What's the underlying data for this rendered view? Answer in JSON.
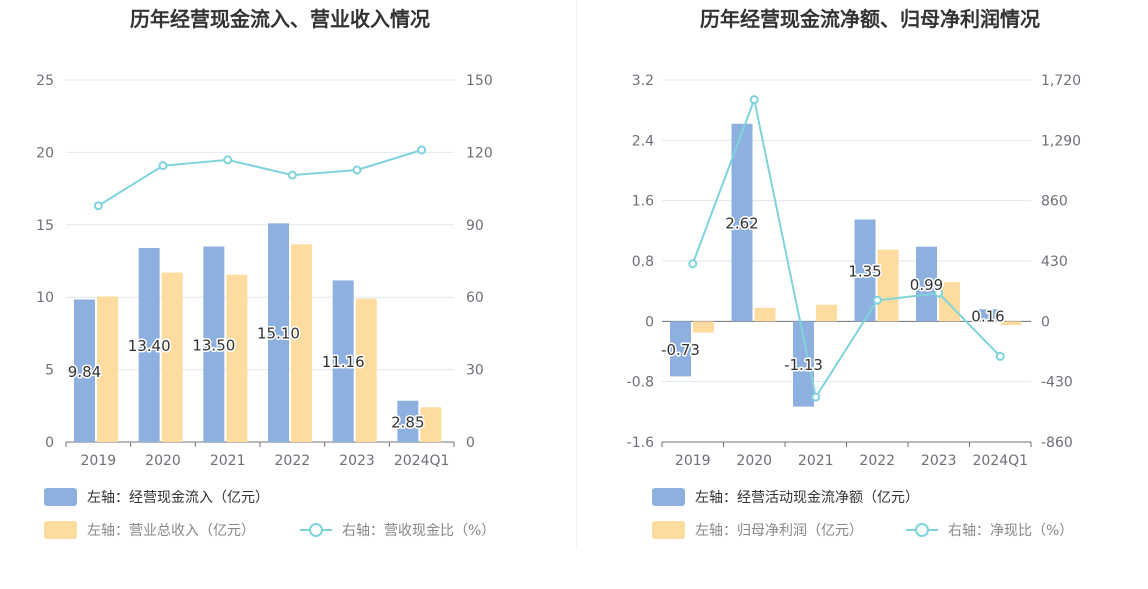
{
  "colors": {
    "bar_primary": "#8eb0de",
    "bar_secondary": "#fedc9f",
    "line": "#7fd3dc",
    "grid": "#e3e7f0",
    "axis": "#6e7079",
    "legend_active": "#333333",
    "legend_muted": "#888888"
  },
  "chart_data": [
    {
      "type": "bar",
      "title": "历年经营现金流入、营业收入情况",
      "categories": [
        "2019",
        "2020",
        "2021",
        "2022",
        "2023",
        "2024Q1"
      ],
      "left_axis": {
        "ticks": [
          "0",
          "5",
          "10",
          "15",
          "20",
          "25"
        ],
        "ylim": [
          0,
          25
        ]
      },
      "right_axis": {
        "ticks": [
          "0",
          "30",
          "60",
          "90",
          "120",
          "150"
        ],
        "ylim": [
          0,
          150
        ]
      },
      "series": [
        {
          "name": "左轴：经营现金流入（亿元）",
          "axis": "left",
          "kind": "bar",
          "values": [
            9.84,
            13.4,
            13.5,
            15.1,
            11.16,
            2.85
          ],
          "labels": [
            "9.84",
            "13.40",
            "13.50",
            "15.10",
            "11.16",
            "2.85"
          ]
        },
        {
          "name": "左轴：营业总收入（亿元）",
          "axis": "left",
          "kind": "bar",
          "values": [
            10.05,
            11.7,
            11.55,
            13.65,
            9.9,
            2.4
          ]
        },
        {
          "name": "右轴：营收现金比（%）",
          "axis": "right",
          "kind": "line",
          "values": [
            97.9,
            114.5,
            116.9,
            110.6,
            112.7,
            121.0
          ]
        }
      ]
    },
    {
      "type": "bar",
      "title": "历年经营现金流净额、归母净利润情况",
      "categories": [
        "2019",
        "2020",
        "2021",
        "2022",
        "2023",
        "2024Q1"
      ],
      "left_axis": {
        "ticks": [
          "-1.6",
          "-0.8",
          "0",
          "0.8",
          "1.6",
          "2.4",
          "3.2"
        ],
        "ylim": [
          -1.6,
          3.2
        ]
      },
      "right_axis": {
        "ticks": [
          "-860",
          "-430",
          "0",
          "430",
          "860",
          "1,290",
          "1,720"
        ],
        "ylim": [
          -860,
          1720
        ]
      },
      "series": [
        {
          "name": "左轴：经营活动现金流净额（亿元）",
          "axis": "left",
          "kind": "bar",
          "values": [
            -0.73,
            2.62,
            -1.13,
            1.35,
            0.99,
            0.16
          ],
          "labels": [
            "-0.73",
            "2.62",
            "-1.13",
            "1.35",
            "0.99",
            "0.16"
          ]
        },
        {
          "name": "左轴：归母净利润（亿元）",
          "axis": "left",
          "kind": "bar",
          "values": [
            -0.15,
            0.18,
            0.22,
            0.95,
            0.52,
            -0.05
          ]
        },
        {
          "name": "右轴：净现比（%）",
          "axis": "right",
          "kind": "line",
          "values": [
            410,
            1580,
            -540,
            150,
            200,
            -250
          ]
        }
      ]
    }
  ]
}
